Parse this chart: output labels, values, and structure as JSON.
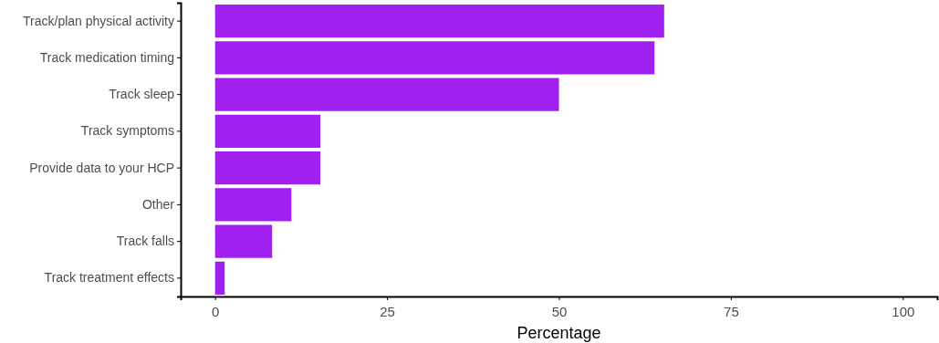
{
  "chart_data": {
    "type": "bar",
    "orientation": "horizontal",
    "xlabel": "Percentage",
    "categories": [
      "Track/plan physical activity",
      "Track medication timing",
      "Track sleep",
      "Track symptoms",
      "Provide data to your HCP",
      "Other",
      "Track falls",
      "Track treatment effects"
    ],
    "values": [
      65.3,
      63.9,
      50.0,
      15.3,
      15.3,
      11.1,
      8.3,
      1.4
    ],
    "color": "#a020f0",
    "xlim": [
      -5,
      105
    ],
    "xticks": [
      0,
      25,
      50,
      75,
      100
    ],
    "grid": false
  }
}
